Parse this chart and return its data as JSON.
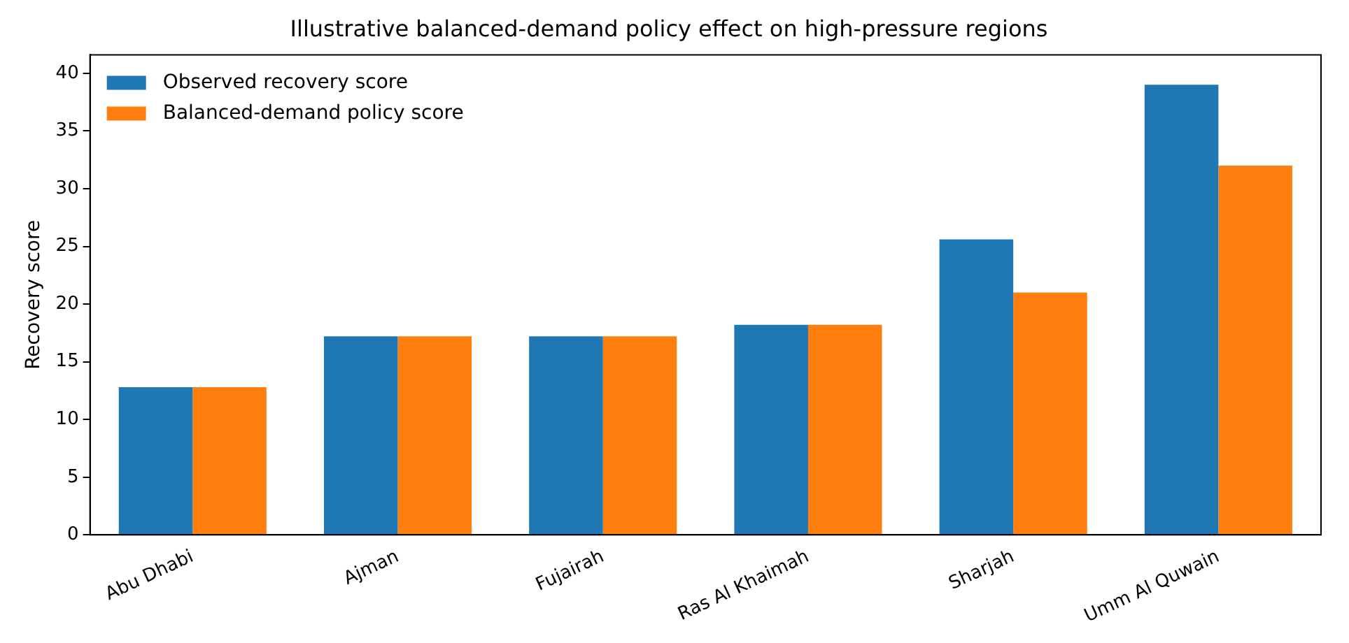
{
  "chart_data": {
    "type": "bar",
    "title": "Illustrative balanced-demand policy effect on high-pressure regions",
    "ylabel": "Recovery score",
    "categories": [
      "Abu Dhabi",
      "Ajman",
      "Fujairah",
      "Ras Al Khaimah",
      "Sharjah",
      "Umm Al Quwain"
    ],
    "series": [
      {
        "name": "Observed recovery score",
        "color": "#1f77b4",
        "values": [
          12.8,
          17.2,
          17.2,
          18.2,
          25.6,
          39
        ]
      },
      {
        "name": "Balanced-demand policy score",
        "color": "#ff7f0e",
        "values": [
          12.8,
          17.2,
          17.2,
          18.2,
          21,
          32
        ]
      }
    ],
    "ylim": [
      0,
      41.6
    ],
    "yticks": [
      0,
      5,
      10,
      15,
      20,
      25,
      30,
      35,
      40
    ],
    "grid": false,
    "legend": "top left"
  }
}
